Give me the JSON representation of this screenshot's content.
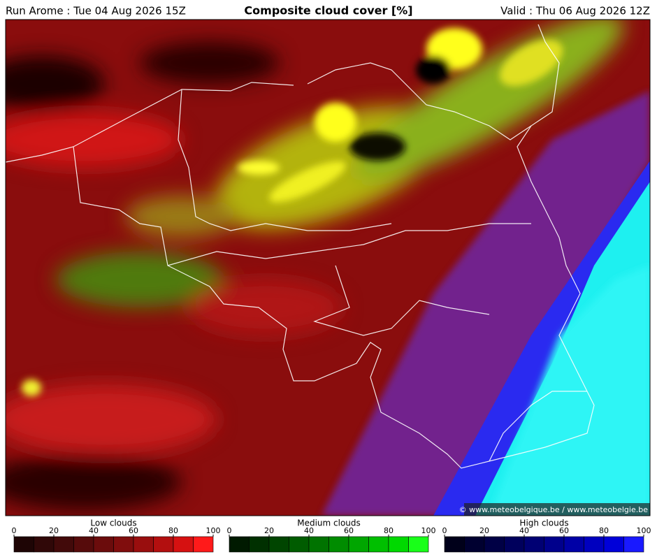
{
  "header": {
    "left": "Run Arome : Tue 04 Aug 2026 15Z",
    "title": "Composite cloud cover [%]",
    "right": "Valid : Thu 06 Aug 2026 12Z"
  },
  "credit": "© www.meteobelgique.be / www.meteobelgie.be",
  "legends": [
    {
      "title": "Low clouds",
      "lim": [
        0,
        100
      ],
      "ticks": [
        0,
        20,
        40,
        60,
        80,
        100
      ],
      "colors": [
        "#1e0505",
        "#300808",
        "#420a0a",
        "#560b0b",
        "#6b0c0c",
        "#800d0d",
        "#990e0e",
        "#b30f0f",
        "#d61111",
        "#ff1a1a"
      ]
    },
    {
      "title": "Medium clouds",
      "lim": [
        0,
        100
      ],
      "ticks": [
        0,
        20,
        40,
        60,
        80,
        100
      ],
      "colors": [
        "#001a00",
        "#003000",
        "#004500",
        "#005c00",
        "#007300",
        "#008c00",
        "#00a600",
        "#00bf00",
        "#00d900",
        "#19ff19"
      ]
    },
    {
      "title": "High clouds",
      "lim": [
        0,
        100
      ],
      "ticks": [
        0,
        20,
        40,
        60,
        80,
        100
      ],
      "colors": [
        "#00001a",
        "#000030",
        "#000045",
        "#00005c",
        "#000073",
        "#00008c",
        "#0000a6",
        "#0000bf",
        "#0000d9",
        "#1919ff"
      ]
    }
  ]
}
